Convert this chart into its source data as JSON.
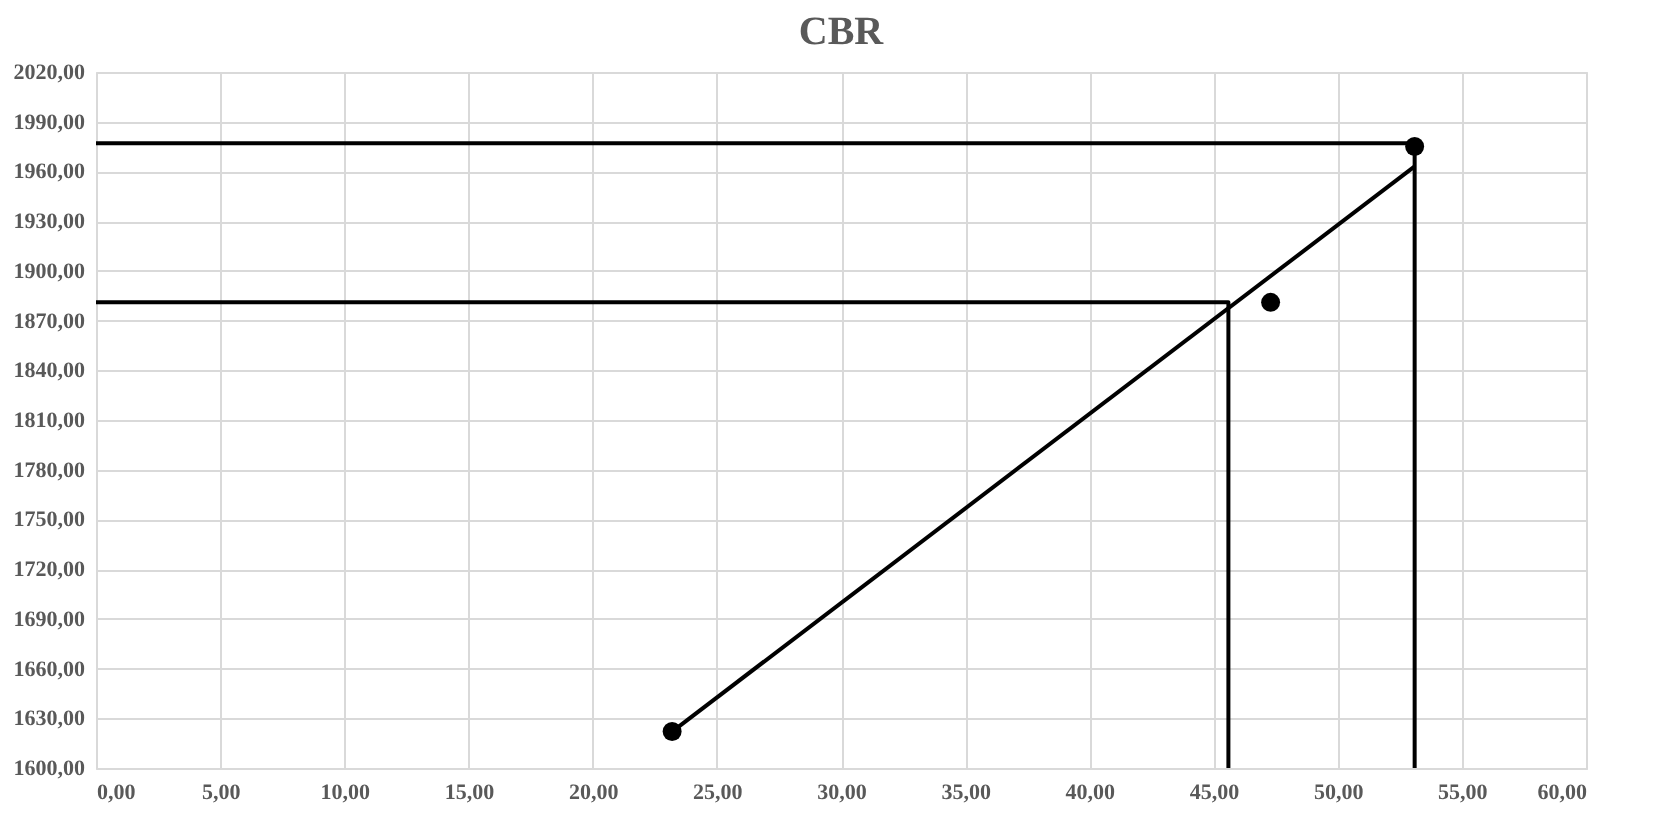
{
  "chart_data": {
    "type": "scatter",
    "title": "CBR",
    "xlim": [
      0,
      60
    ],
    "xticks": [
      {
        "value": 0,
        "label": "0,00"
      },
      {
        "value": 5,
        "label": "5,00"
      },
      {
        "value": 10,
        "label": "10,00"
      },
      {
        "value": 15,
        "label": "15,00"
      },
      {
        "value": 20,
        "label": "20,00"
      },
      {
        "value": 25,
        "label": "25,00"
      },
      {
        "value": 30,
        "label": "30,00"
      },
      {
        "value": 35,
        "label": "35,00"
      },
      {
        "value": 40,
        "label": "40,00"
      },
      {
        "value": 45,
        "label": "45,00"
      },
      {
        "value": 50,
        "label": "50,00"
      },
      {
        "value": 55,
        "label": "55,00"
      },
      {
        "value": 60,
        "label": "60,00"
      }
    ],
    "ylim": [
      1600,
      2020
    ],
    "yticks": [
      {
        "value": 1600,
        "label": "1600,00"
      },
      {
        "value": 1630,
        "label": "1630,00"
      },
      {
        "value": 1660,
        "label": "1660,00"
      },
      {
        "value": 1690,
        "label": "1690,00"
      },
      {
        "value": 1720,
        "label": "1720,00"
      },
      {
        "value": 1750,
        "label": "1750,00"
      },
      {
        "value": 1780,
        "label": "1780,00"
      },
      {
        "value": 1810,
        "label": "1810,00"
      },
      {
        "value": 1840,
        "label": "1840,00"
      },
      {
        "value": 1870,
        "label": "1870,00"
      },
      {
        "value": 1900,
        "label": "1900,00"
      },
      {
        "value": 1930,
        "label": "1930,00"
      },
      {
        "value": 1960,
        "label": "1960,00"
      },
      {
        "value": 1990,
        "label": "1990,00"
      },
      {
        "value": 2020,
        "label": "2020,00"
      }
    ],
    "grid": true,
    "marker": "circle",
    "series": [
      {
        "color": "#000000",
        "x": [
          23.2,
          47.3,
          53.1
        ],
        "values": [
          1622,
          1881,
          1975
        ]
      },
      {
        "type": "line",
        "color": "#000000",
        "marker": "none",
        "x": [
          23.2,
          53.1
        ],
        "values": [
          1622,
          1963
        ]
      },
      {
        "type": "line",
        "color": "#000000",
        "marker": "none",
        "x": [
          0,
          45.6,
          45.6
        ],
        "values": [
          1881,
          1881,
          1600
        ]
      },
      {
        "type": "line",
        "color": "#000000",
        "marker": "none",
        "x": [
          0,
          53.1,
          53.1
        ],
        "values": [
          1977,
          1977,
          1600
        ]
      }
    ]
  }
}
